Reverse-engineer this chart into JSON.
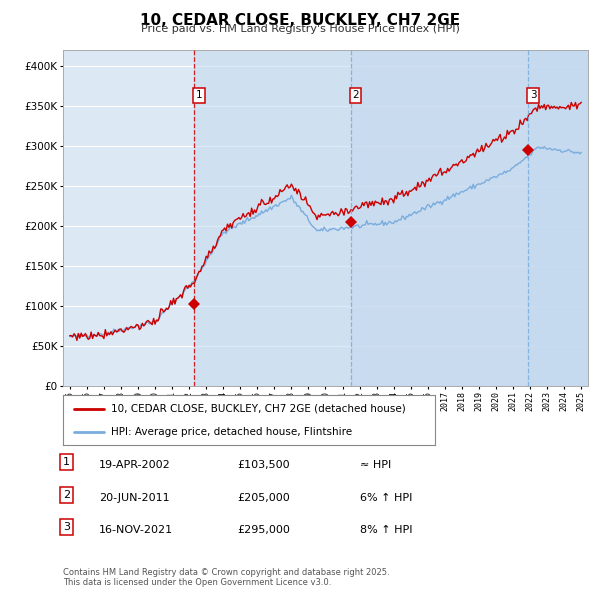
{
  "title": "10, CEDAR CLOSE, BUCKLEY, CH7 2GE",
  "subtitle": "Price paid vs. HM Land Registry's House Price Index (HPI)",
  "fig_bg_color": "#ffffff",
  "plot_bg_color": "#dce9f5",
  "hpi_color": "#7aacdd",
  "price_color": "#cc0000",
  "marker_color": "#cc0000",
  "shade_color": "#c5d9ef",
  "ylim": [
    0,
    420000
  ],
  "yticks": [
    0,
    50000,
    100000,
    150000,
    200000,
    250000,
    300000,
    350000,
    400000
  ],
  "year_start": 1995,
  "year_end": 2025,
  "sale_dates": [
    2002.3,
    2011.47,
    2021.88
  ],
  "sale_prices": [
    103500,
    205000,
    295000
  ],
  "sale_labels": [
    "1",
    "2",
    "3"
  ],
  "sale_label_colors": [
    "#cc0000",
    "#7aacdd",
    "#7aacdd"
  ],
  "legend_entries": [
    {
      "label": "10, CEDAR CLOSE, BUCKLEY, CH7 2GE (detached house)",
      "color": "#cc0000"
    },
    {
      "label": "HPI: Average price, detached house, Flintshire",
      "color": "#7aacdd"
    }
  ],
  "table_rows": [
    {
      "num": "1",
      "date": "19-APR-2002",
      "price": "£103,500",
      "note": "≈ HPI"
    },
    {
      "num": "2",
      "date": "20-JUN-2011",
      "price": "£205,000",
      "note": "6% ↑ HPI"
    },
    {
      "num": "3",
      "date": "16-NOV-2021",
      "price": "£295,000",
      "note": "8% ↑ HPI"
    }
  ],
  "footnote": "Contains HM Land Registry data © Crown copyright and database right 2025.\nThis data is licensed under the Open Government Licence v3.0."
}
